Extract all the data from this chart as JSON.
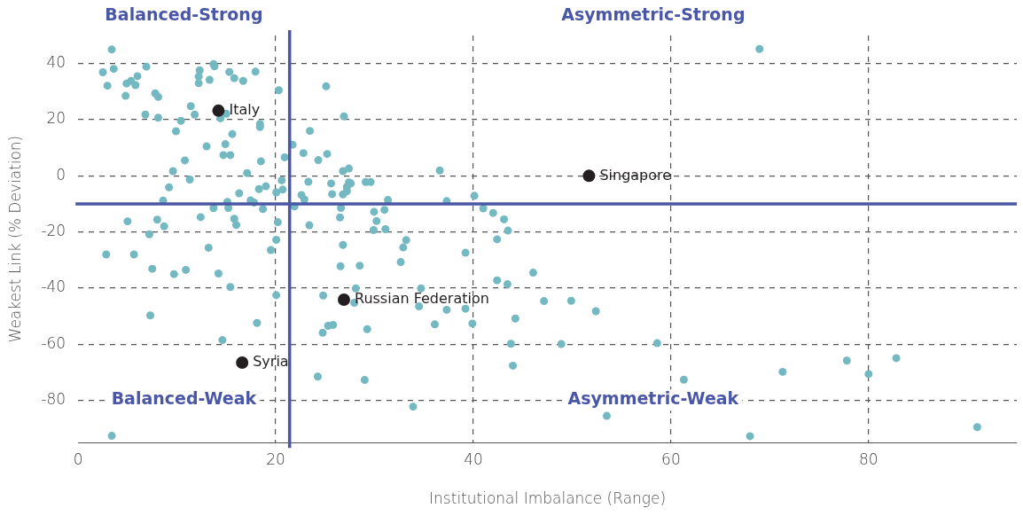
{
  "chart_data": {
    "type": "scatter",
    "xlabel": "Institutional Imbalance (Range)",
    "ylabel": "Weakest Link (% Deviation)",
    "xlim": [
      0,
      95
    ],
    "xticks": [
      0,
      20,
      40,
      60,
      80
    ],
    "ylim": [
      -95,
      50
    ],
    "yticks": [
      -80,
      -60,
      -40,
      -20,
      0,
      20,
      40
    ],
    "grid": true,
    "marker": "circle",
    "series": [
      {
        "color": "#74b9c1",
        "x": [
          3.4,
          2.5,
          3.6,
          2.96,
          4.9,
          5.35,
          5.8,
          6.0,
          6.9,
          4.8,
          7.8,
          8.1,
          6.8,
          8.1,
          12.3,
          12.2,
          12.2,
          13.3,
          13.7,
          13.8,
          15.3,
          15.8,
          16.7,
          17.95,
          20.3,
          11.4,
          11.8,
          14.4,
          15.0,
          18.4,
          18.4,
          10.4,
          9.9,
          15.6,
          14.9,
          13.0,
          14.7,
          15.4,
          18.5,
          10.8,
          9.6,
          17.1,
          11.3,
          9.2,
          16.3,
          18.3,
          19.0,
          20.6,
          20.05,
          20.7,
          20.9,
          8.6,
          13.7,
          15.1,
          15.2,
          17.45,
          17.8,
          18.7,
          5.0,
          8.0,
          8.7,
          12.4,
          15.8,
          16.0,
          20.2,
          7.2,
          20.05,
          2.84,
          5.65,
          13.2,
          19.5,
          7.5,
          9.7,
          10.9,
          14.2,
          15.4,
          20.05,
          7.3,
          18.1,
          14.6,
          3.4,
          25.1,
          26.9,
          23.45,
          21.7,
          22.8,
          25.2,
          24.3,
          26.8,
          27.4,
          36.6,
          23.3,
          25.6,
          22.6,
          22.9,
          25.7,
          26.8,
          27.2,
          27.2,
          27.4,
          27.6,
          29.1,
          29.6,
          31.35,
          37.3,
          40.1,
          21.9,
          26.6,
          26.5,
          29.95,
          31.0,
          30.2,
          29.9,
          31.1,
          23.4,
          41.0,
          42.0,
          43.1,
          43.5,
          42.4,
          33.2,
          32.9,
          32.65,
          26.8,
          26.55,
          28.5,
          39.2,
          42.4,
          43.45,
          46.05,
          47.15,
          24.8,
          28.1,
          27.95,
          34.7,
          34.5,
          37.3,
          39.2,
          44.25,
          24.75,
          25.3,
          25.8,
          29.25,
          36.1,
          39.9,
          43.8,
          44.0,
          24.25,
          29.0,
          33.9,
          68.96,
          49.9,
          52.4,
          48.9,
          58.6,
          61.3,
          71.3,
          77.8,
          80.0,
          82.8,
          53.5,
          68.0,
          91.0
        ],
        "values": [
          45.0,
          36.9,
          38.1,
          32.1,
          32.9,
          33.8,
          32.3,
          35.5,
          38.9,
          28.5,
          29.4,
          28.1,
          21.8,
          20.7,
          37.6,
          35.4,
          33.0,
          34.2,
          39.8,
          39.0,
          37.0,
          34.8,
          33.8,
          37.1,
          30.5,
          24.8,
          21.8,
          20.5,
          22.1,
          18.5,
          17.4,
          19.6,
          15.9,
          14.9,
          11.3,
          10.5,
          7.4,
          7.4,
          5.2,
          5.5,
          1.7,
          1.0,
          -1.3,
          -4.1,
          -6.2,
          -4.7,
          -3.7,
          -1.6,
          -5.9,
          -4.9,
          6.6,
          -8.8,
          -11.5,
          -9.3,
          -11.4,
          -8.7,
          -9.5,
          -11.8,
          -16.2,
          -15.6,
          -18.0,
          -14.7,
          -15.3,
          -17.5,
          -16.5,
          -20.8,
          -22.8,
          -28.0,
          -28.0,
          -25.6,
          -26.4,
          -33.1,
          -35.0,
          -33.5,
          -34.8,
          -39.6,
          -42.5,
          -49.7,
          -52.4,
          -58.5,
          -92.6,
          31.9,
          21.2,
          16.0,
          11.1,
          8.1,
          7.8,
          5.6,
          1.7,
          2.6,
          1.9,
          -2.1,
          -2.7,
          -6.8,
          -8.4,
          -6.5,
          -6.6,
          -5.4,
          -3.9,
          -2.3,
          -2.7,
          -2.2,
          -2.2,
          -8.6,
          -9.0,
          -7.1,
          -10.9,
          -11.4,
          -14.8,
          -12.8,
          -12.1,
          -16.1,
          -19.3,
          -19.0,
          -17.6,
          -11.6,
          -13.2,
          -15.5,
          -19.5,
          -22.6,
          -22.9,
          -25.5,
          -30.7,
          -24.6,
          -32.2,
          -32.0,
          -27.4,
          -37.2,
          -38.6,
          -34.5,
          -44.6,
          -42.6,
          -40.1,
          -45.2,
          -40.1,
          -46.5,
          -47.7,
          -47.3,
          -50.8,
          -55.9,
          -53.4,
          -53.1,
          -54.6,
          -52.9,
          -52.6,
          -59.8,
          -67.6,
          -71.5,
          -72.7,
          -82.2,
          45.2,
          -44.5,
          -48.2,
          -59.9,
          -59.6,
          -72.6,
          -69.8,
          -65.8,
          -70.6,
          -64.9,
          -85.5,
          -92.7,
          -89.5
        ]
      },
      {
        "color": "#231f20",
        "x": [
          14.2,
          51.7,
          26.9,
          16.6
        ],
        "values": [
          23.2,
          0,
          -44.1,
          -66.5
        ]
      }
    ],
    "ref_lines": [
      {
        "axis": "x",
        "value": 21.4,
        "color": "#4a56a6"
      },
      {
        "axis": "y",
        "value": -10,
        "color": "#4a56a6"
      }
    ],
    "annotations": [
      "Balanced-Strong",
      "Asymmetric-Strong",
      "Balanced-Weak",
      "Asymmetric-Weak",
      {
        "text": "Italy",
        "x": 14.2,
        "y": 23.2
      },
      {
        "text": "Singapore",
        "x": 51.7,
        "y": 0
      },
      {
        "text": "Russian Federation",
        "x": 26.9,
        "y": -44.1
      },
      {
        "text": "Syria",
        "x": 16.6,
        "y": -66.5
      }
    ]
  }
}
